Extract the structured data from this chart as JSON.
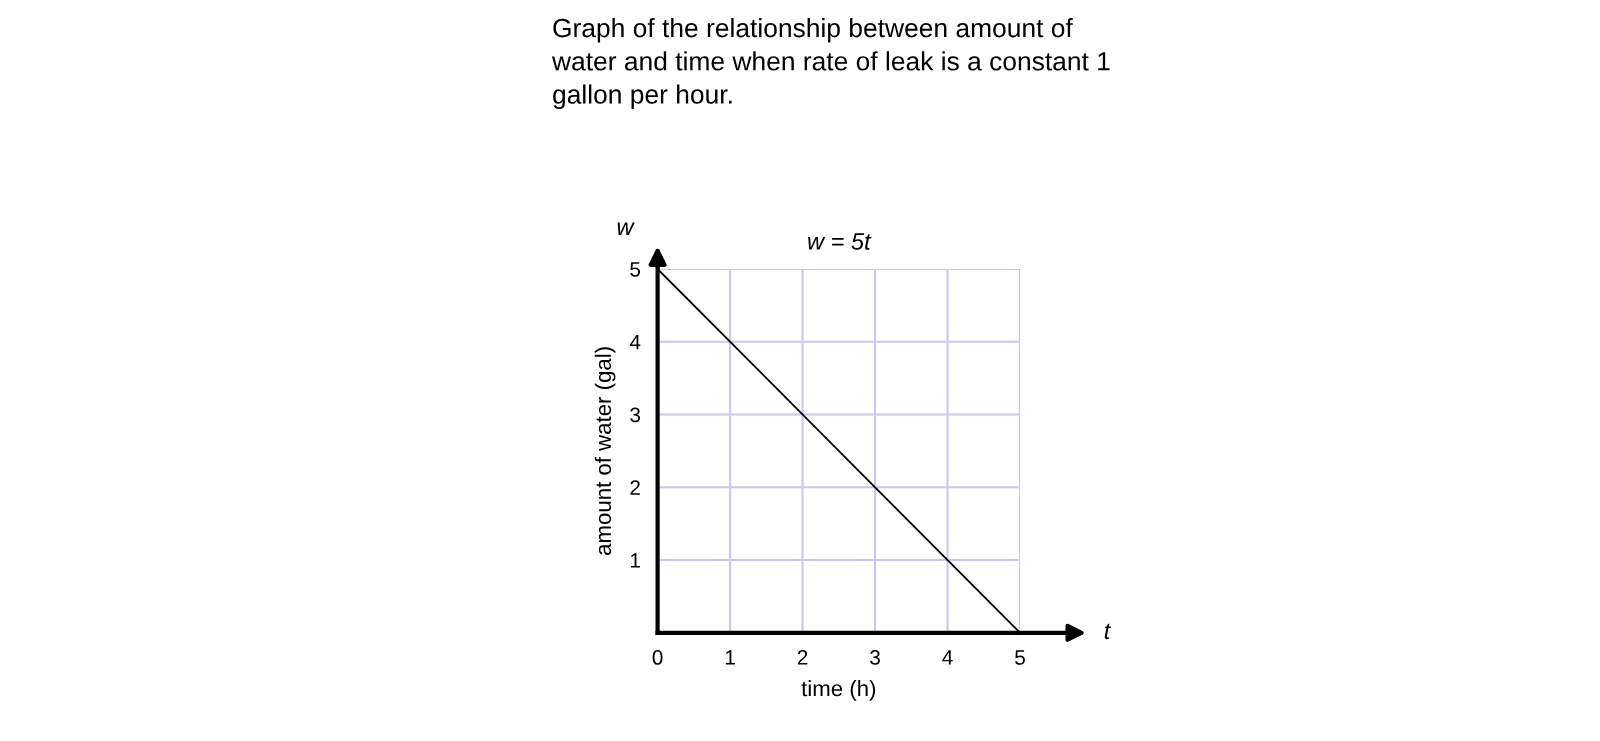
{
  "chart_data": {
    "type": "line",
    "title": "Graph of the relationship between amount of water and time when rate of leak is a constant 1 gallon per hour.",
    "xlabel": "time (h)",
    "ylabel": "amount of water (gal)",
    "x": [
      0,
      5
    ],
    "series": [
      {
        "color": "#000000",
        "values": [
          5,
          0
        ]
      }
    ],
    "xlim": [
      0,
      5
    ],
    "ylim": [
      0,
      5
    ],
    "xticks": [
      0,
      1,
      2,
      3,
      4,
      5
    ],
    "yticks": [
      1,
      2,
      3,
      4,
      5
    ],
    "grid": true,
    "marker": "none",
    "line_style": "solid",
    "annotations": [
      "w = 5t",
      "w",
      "t"
    ]
  }
}
